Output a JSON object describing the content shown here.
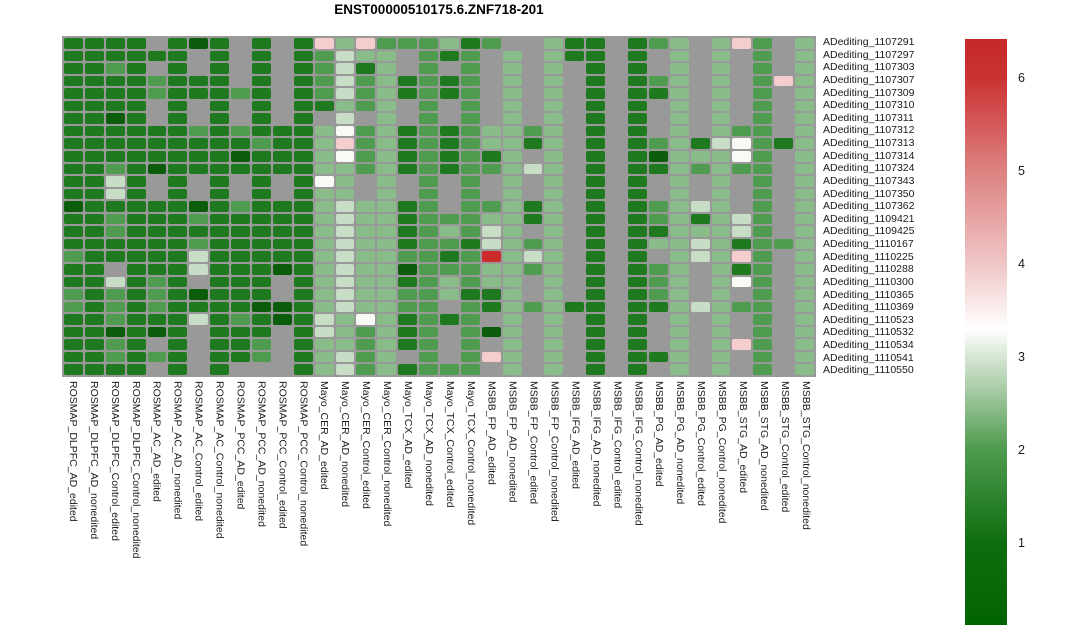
{
  "title": "ENST00000510175.6.ZNF718-201",
  "chart_data": {
    "type": "heatmap",
    "title": "ENST00000510175.6.ZNF718-201",
    "rows": [
      "ADediting_1107291",
      "ADediting_1107297",
      "ADediting_1107303",
      "ADediting_1107307",
      "ADediting_1107309",
      "ADediting_1107310",
      "ADediting_1107311",
      "ADediting_1107312",
      "ADediting_1107313",
      "ADediting_1107314",
      "ADediting_1107324",
      "ADediting_1107343",
      "ADediting_1107350",
      "ADediting_1107362",
      "ADediting_1109421",
      "ADediting_1109425",
      "ADediting_1110167",
      "ADediting_1110225",
      "ADediting_1110288",
      "ADediting_1110300",
      "ADediting_1110365",
      "ADediting_1110369",
      "ADediting_1110523",
      "ADediting_1110532",
      "ADediting_1110534",
      "ADediting_1110541",
      "ADediting_1110550"
    ],
    "columns": [
      "ROSMAP_DLPFC_AD_edited",
      "ROSMAP_DLPFC_AD_nonedited",
      "ROSMAP_DLPFC_Control_edited",
      "ROSMAP_DLPFC_Control_nonedited",
      "ROSMAP_AC_AD_edited",
      "ROSMAP_AC_AD_nonedited",
      "ROSMAP_AC_Control_edited",
      "ROSMAP_AC_Control_nonedited",
      "ROSMAP_PCC_AD_edited",
      "ROSMAP_PCC_AD_nonedited",
      "ROSMAP_PCC_Control_edited",
      "ROSMAP_PCC_Control_nonedited",
      "Mayo_CER_AD_edited",
      "Mayo_CER_AD_nonedited",
      "Mayo_CER_Control_edited",
      "Mayo_CER_Control_nonedited",
      "Mayo_TCX_AD_edited",
      "Mayo_TCX_AD_nonedited",
      "Mayo_TCX_Control_edited",
      "Mayo_TCX_Control_nonedited",
      "MSBB_FP_AD_edited",
      "MSBB_FP_AD_nonedited",
      "MSBB_FP_Control_edited",
      "MSBB_FP_Control_nonedited",
      "MSBB_IFG_AD_edited",
      "MSBB_IFG_AD_nonedited",
      "MSBB_IFG_Control_edited",
      "MSBB_IFG_Control_nonedited",
      "MSBB_PG_AD_edited",
      "MSBB_PG_AD_nonedited",
      "MSBB_PG_Control_edited",
      "MSBB_PG_Control_nonedited",
      "MSBB_STG_AD_edited",
      "MSBB_STG_AD_nonedited",
      "MSBB_STG_Control_edited",
      "MSBB_STG_Control_nonedited"
    ],
    "value_codes": [
      "gggg.gGg.g.gklkmmmlgm..lgg.gml.lkm.l",
      "gggggg.g.g.gmpll.mgm.l.lgg.g.l.l.m.l",
      "ggmg.g.g.g.gmpgl.m.m.l.l.g.g.l.l.m.l",
      "ggggmggg.g.gmpmlgmgm.l.l.g.gml.l.mkl",
      "ggggmgggmg.gmpmlgmgm.l.l.g.ggl.l.m.l",
      "gggg.g.g.g.gglml.m.m.l.l.g.g.l.l.m.l",
      "ggGg.g.g.g.g.p.l.m.m.l.l.g.g.l.l.m.l",
      "ggggggmgmggglwmlgmgmllml.g.g.l.lmm.l",
      "gggggggggmgglkmlgmgmllgl.g.gmlgpwmgl",
      "ggggggggGggglwmlgmgmgl.l.g.gGlllwm.l",
      "ggmgGgggggggllmlgmgmmlpl.g.gglmlmm.l",
      "ggpg.g.g.g.gwl.l.m.m.l.l.g.g.l.l.m.l",
      "ggpg.g.g.g.gll.l.m.m.l.l.g.g.l.l.m.l",
      "GgggggGgmggglpllgm.mmlgl.g.gmlpl.m.l",
      "ggmgggmggggglpllgmmmllgl.g.gmlglpm.l",
      "ggmggggggggglpllgmlmpl.l.g.gglllpm.l",
      "ggggggmggggglpllgmmgplml.g.gllplgmml",
      "mgggggpggggglpllmmgmRlpl.g.g.lplkm.l",
      "gg.gggpgggGglpllGmmmllml.g.gml.lgm.l",
      "ggpgmg.ggg.glpllgmlmll.l.g.gml.lwm.l",
      "mgmgmgGggg.glpllmmlggl.l.g.gml.l.m.l",
      "mgmgmggggGGglpllmm.mglmlgg.gglplmm.l",
      "ggmgggpgmgGgplwlgmgm.l.l.g.g.l.l.m.l",
      "ggGgGg.ggg.gplmlgm.mGl.l.g.g.l.l.m.l",
      "ggmg.g.ggm.gllmlgm.m.l.l.g.g.l.lkm.l",
      "ggmgmg.ggm.glpml.m.mkl.l.g.ggl.l.m.l",
      "gggg.g.g...glpmlgmmm.l.l.g.g.l.l.m.l"
    ],
    "code_values": {
      "G": 0.5,
      "g": 1.0,
      "m": 1.8,
      "l": 2.4,
      "p": 2.9,
      "w": 3.3,
      "k": 3.9,
      "R": 6.2,
      ".": null
    },
    "code_colors": {
      "G": "#0b5d0b",
      "g": "#1f7a1f",
      "m": "#4f9b4f",
      "l": "#8abc8a",
      "p": "#c8ddc6",
      "w": "#f8faf6",
      "k": "#f5cdcd",
      "R": "#cc2b2b"
    },
    "na_color": "#999999",
    "na_meaning": "gray cell = no data (NA)",
    "colorbar": {
      "ticks": [
        6,
        5,
        4,
        3,
        2,
        1
      ],
      "range": [
        0.12,
        6.42
      ],
      "colormap": "green-white-red",
      "low_color": "#006400",
      "mid_color": "#ffffff",
      "high_color": "#c62828"
    },
    "layout": {
      "grid": "27 rows x 36 columns",
      "legend_position": "right",
      "row_labels_position": "right",
      "column_labels_position": "bottom-rotated-90"
    }
  }
}
